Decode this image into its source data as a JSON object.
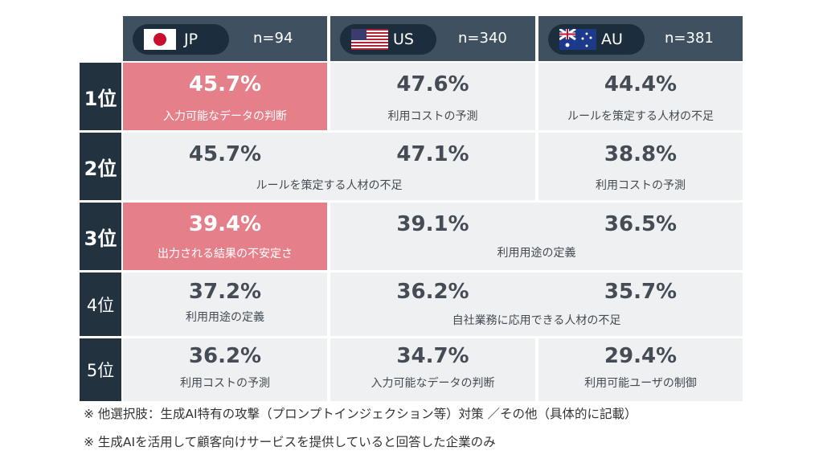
{
  "columns": [
    {
      "code": "JP",
      "n": "n=94",
      "flag": "japan-flag-icon"
    },
    {
      "code": "US",
      "n": "n=340",
      "flag": "us-flag-icon"
    },
    {
      "code": "AU",
      "n": "n=381",
      "flag": "australia-flag-icon"
    }
  ],
  "ranks": [
    "1位",
    "2位",
    "3位",
    "4位",
    "5位"
  ],
  "cells": {
    "r1_jp": {
      "pct": "45.7%",
      "label": "入力可能なデータの判断"
    },
    "r1_us": {
      "pct": "47.6%",
      "label": "利用コストの予測"
    },
    "r1_au": {
      "pct": "44.4%",
      "label": "ルールを策定する人材の不足"
    },
    "r2_jpus": {
      "pct_jp": "45.7%",
      "pct_us": "47.1%",
      "label": "ルールを策定する人材の不足"
    },
    "r2_au": {
      "pct": "38.8%",
      "label": "利用コストの予測"
    },
    "r3_jp": {
      "pct": "39.4%",
      "label": "出力される結果の不安定さ"
    },
    "r3_usau": {
      "pct_us": "39.1%",
      "pct_au": "36.5%",
      "label": "利用用途の定義"
    },
    "r4_jp": {
      "pct": "37.2%",
      "label": "利用用途の定義"
    },
    "r4_usau": {
      "pct_us": "36.2%",
      "pct_au": "35.7%",
      "label": "自社業務に応用できる人材の不足"
    },
    "r5_jp": {
      "pct": "36.2%",
      "label": "利用コストの予測"
    },
    "r5_us": {
      "pct": "34.7%",
      "label": "入力可能なデータの判断"
    },
    "r5_au": {
      "pct": "29.4%",
      "label": "利用可能ユーザの制御"
    }
  },
  "colors": {
    "highlight": "#e5808b",
    "header": "#3f5060",
    "rank": "#22323f",
    "cell": "#eff0f2"
  },
  "notes": [
    "※ 他選択肢：生成AI特有の攻撃（プロンプトインジェクション等）対策 ／その他（具体的に記載）",
    "※ 生成AIを活用して顧客向けサービスを提供していると回答した企業のみ"
  ],
  "chart_data": {
    "type": "table",
    "columns": [
      "JP",
      "US",
      "AU"
    ],
    "sample_sizes": {
      "JP": 94,
      "US": 340,
      "AU": 381
    },
    "rows": [
      {
        "rank": "1位",
        "JP": {
          "value": 45.7,
          "item": "入力可能なデータの判断"
        },
        "US": {
          "value": 47.6,
          "item": "利用コストの予測"
        },
        "AU": {
          "value": 44.4,
          "item": "ルールを策定する人材の不足"
        }
      },
      {
        "rank": "2位",
        "JP": {
          "value": 45.7,
          "item": "ルールを策定する人材の不足"
        },
        "US": {
          "value": 47.1,
          "item": "ルールを策定する人材の不足"
        },
        "AU": {
          "value": 38.8,
          "item": "利用コストの予測"
        }
      },
      {
        "rank": "3位",
        "JP": {
          "value": 39.4,
          "item": "出力される結果の不安定さ"
        },
        "US": {
          "value": 39.1,
          "item": "利用用途の定義"
        },
        "AU": {
          "value": 36.5,
          "item": "利用用途の定義"
        }
      },
      {
        "rank": "4位",
        "JP": {
          "value": 37.2,
          "item": "利用用途の定義"
        },
        "US": {
          "value": 36.2,
          "item": "自社業務に応用できる人材の不足"
        },
        "AU": {
          "value": 35.7,
          "item": "自社業務に応用できる人材の不足"
        }
      },
      {
        "rank": "5位",
        "JP": {
          "value": 36.2,
          "item": "利用コストの予測"
        },
        "US": {
          "value": 34.7,
          "item": "入力可能なデータの判断"
        },
        "AU": {
          "value": 29.4,
          "item": "利用可能ユーザの制御"
        }
      }
    ],
    "highlighted": [
      {
        "rank": "1位",
        "column": "JP"
      },
      {
        "rank": "3位",
        "column": "JP"
      }
    ]
  }
}
